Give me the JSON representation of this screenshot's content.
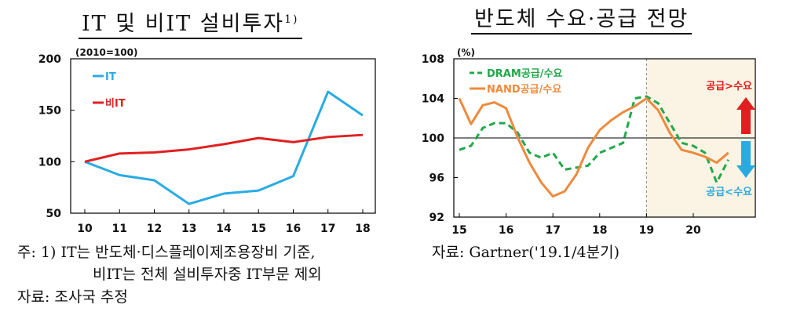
{
  "left_title": "IT 및 비IT 설비투자",
  "left_title_sup": "1)",
  "right_title": "반도체 수요·공급 전망",
  "notes": {
    "left_line1": "주: 1) IT는 반도체·디스플레이제조용장비 기준,",
    "left_line2": "비IT는 전체 설비투자중 IT부문 제외",
    "left_line3": "자료: 조사국 추정",
    "right_line1": "자료: Gartner('19.1/4분기)"
  },
  "colors": {
    "it": "#29abe2",
    "nonit": "#e02020",
    "dram": "#22a84a",
    "nand": "#ee8a3c",
    "forecast_bg": "#fbf3e4",
    "up_arrow": "#e02020",
    "down_arrow": "#29abe2"
  },
  "chart_data": [
    {
      "type": "line",
      "title": "IT 및 비IT 설비투자",
      "unit_label": "(2010=100)",
      "x": [
        "10",
        "11",
        "12",
        "13",
        "14",
        "15",
        "16",
        "17",
        "18"
      ],
      "ylim": [
        50,
        200
      ],
      "yticks": [
        "200",
        "150",
        "100",
        "50"
      ],
      "legend_placement": "top-left",
      "series": [
        {
          "name": "IT",
          "values": [
            100,
            87,
            82,
            59,
            69,
            72,
            86,
            168,
            145
          ]
        },
        {
          "name": "비IT",
          "values": [
            100,
            108,
            109,
            112,
            117,
            123,
            119,
            124,
            126
          ]
        }
      ]
    },
    {
      "type": "line",
      "title": "반도체 수요·공급 전망",
      "unit_label": "(%)",
      "xlim": [
        15,
        21
      ],
      "xticks": [
        "15",
        "16",
        "17",
        "18",
        "19",
        "20"
      ],
      "ylim": [
        92,
        108
      ],
      "yticks": [
        "108",
        "104",
        "100",
        "96",
        "92"
      ],
      "reference_line": 100,
      "forecast_from": 19,
      "legend_placement": "top-left",
      "annotations": {
        "above": "공급>수요",
        "below": "공급<수요"
      },
      "series": [
        {
          "name": "DRAM공급/수요",
          "style": "dashed",
          "x": [
            15,
            15.25,
            15.5,
            15.75,
            16,
            16.25,
            16.5,
            16.75,
            17,
            17.25,
            17.5,
            17.75,
            18,
            18.25,
            18.5,
            18.75,
            19,
            19.25,
            19.5,
            19.75,
            20,
            20.25,
            20.5,
            20.75
          ],
          "values": [
            98.8,
            99.2,
            101.0,
            101.5,
            101.5,
            100.5,
            98.5,
            98.0,
            98.5,
            96.8,
            97.0,
            97.2,
            98.5,
            99.0,
            99.5,
            104.0,
            104.2,
            103.5,
            101.5,
            99.5,
            99.2,
            98.5,
            95.5,
            97.8
          ]
        },
        {
          "name": "NAND공급/수요",
          "style": "solid",
          "x": [
            15,
            15.25,
            15.5,
            15.75,
            16,
            16.25,
            16.5,
            16.75,
            17,
            17.25,
            17.5,
            17.75,
            18,
            18.25,
            18.5,
            18.75,
            19,
            19.25,
            19.5,
            19.75,
            20,
            20.25,
            20.5,
            20.75
          ],
          "values": [
            104.0,
            101.4,
            103.3,
            103.6,
            103.0,
            100.0,
            97.5,
            95.5,
            94.1,
            94.6,
            96.3,
            99.0,
            100.8,
            101.8,
            102.6,
            103.2,
            104.0,
            102.8,
            100.5,
            98.8,
            98.5,
            98.1,
            97.5,
            98.5
          ]
        }
      ]
    }
  ]
}
